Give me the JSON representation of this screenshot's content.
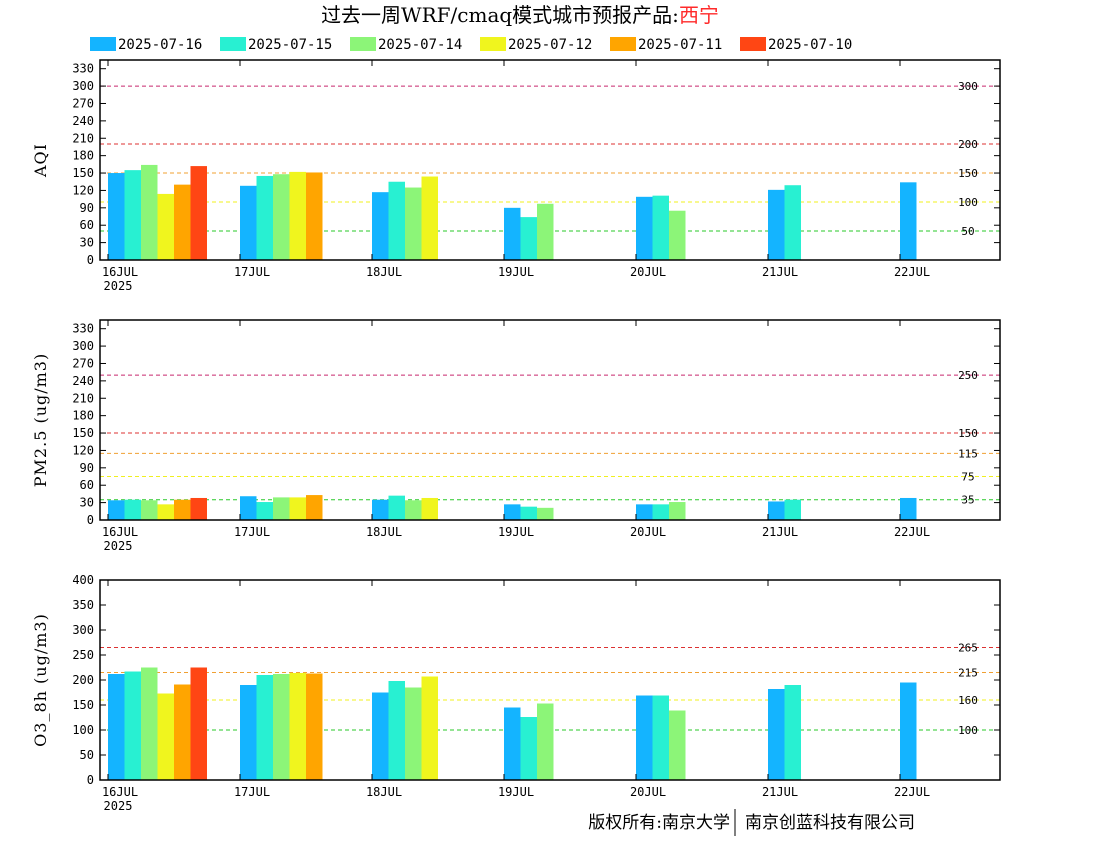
{
  "header": {
    "title_prefix": "过去一周WRF/cmaq模式城市预报产品:",
    "city": "西宁"
  },
  "footer": {
    "copyright_left": "版权所有:南京大学",
    "copyright_right": "南京创蓝科技有限公司"
  },
  "colors": {
    "2025-07-16": "#14b4ff",
    "2025-07-15": "#28f0d2",
    "2025-07-14": "#8cf578",
    "2025-07-12": "#f0f51e",
    "2025-07-11": "#ffa500",
    "2025-07-10": "#ff4614"
  },
  "chart_data": [
    {
      "type": "bar",
      "ylabel": "AQI",
      "categories": [
        "16JUL",
        "17JUL",
        "18JUL",
        "19JUL",
        "20JUL",
        "21JUL",
        "22JUL"
      ],
      "year_label": "2025",
      "ylim": [
        0,
        345
      ],
      "yticks": [
        0,
        30,
        60,
        90,
        120,
        150,
        180,
        210,
        240,
        270,
        300,
        330
      ],
      "thresholds": [
        {
          "value": 300,
          "label": "300",
          "color": "#c8286e"
        },
        {
          "value": 200,
          "label": "200",
          "color": "#dc3232"
        },
        {
          "value": 150,
          "label": "150",
          "color": "#f0a032"
        },
        {
          "value": 100,
          "label": "100",
          "color": "#f0f01e"
        },
        {
          "value": 50,
          "label": "50",
          "color": "#28c828"
        }
      ],
      "series": [
        {
          "name": "2025-07-16",
          "values": [
            150,
            128,
            117,
            90,
            109,
            121,
            134
          ]
        },
        {
          "name": "2025-07-15",
          "values": [
            155,
            145,
            135,
            74,
            111,
            129,
            null
          ]
        },
        {
          "name": "2025-07-14",
          "values": [
            164,
            148,
            125,
            97,
            85,
            null,
            null
          ]
        },
        {
          "name": "2025-07-12",
          "values": [
            114,
            152,
            144,
            null,
            null,
            null,
            null
          ]
        },
        {
          "name": "2025-07-11",
          "values": [
            130,
            151,
            null,
            null,
            null,
            null,
            null
          ]
        },
        {
          "name": "2025-07-10",
          "values": [
            162,
            null,
            null,
            null,
            null,
            null,
            null
          ]
        }
      ]
    },
    {
      "type": "bar",
      "ylabel": "PM2.5 (ug/m3)",
      "categories": [
        "16JUL",
        "17JUL",
        "18JUL",
        "19JUL",
        "20JUL",
        "21JUL",
        "22JUL"
      ],
      "year_label": "2025",
      "ylim": [
        0,
        345
      ],
      "yticks": [
        0,
        30,
        60,
        90,
        120,
        150,
        180,
        210,
        240,
        270,
        300,
        330
      ],
      "thresholds": [
        {
          "value": 250,
          "label": "250",
          "color": "#c8286e"
        },
        {
          "value": 150,
          "label": "150",
          "color": "#dc3232"
        },
        {
          "value": 115,
          "label": "115",
          "color": "#f0a032"
        },
        {
          "value": 75,
          "label": "75",
          "color": "#f0f01e"
        },
        {
          "value": 35,
          "label": "35",
          "color": "#28c828"
        }
      ],
      "series": [
        {
          "name": "2025-07-16",
          "values": [
            34,
            41,
            35,
            27,
            27,
            32,
            38
          ]
        },
        {
          "name": "2025-07-15",
          "values": [
            35,
            31,
            42,
            23,
            27,
            35,
            null
          ]
        },
        {
          "name": "2025-07-14",
          "values": [
            34,
            39,
            34,
            21,
            31,
            null,
            null
          ]
        },
        {
          "name": "2025-07-12",
          "values": [
            27,
            39,
            38,
            null,
            null,
            null,
            null
          ]
        },
        {
          "name": "2025-07-11",
          "values": [
            35,
            43,
            null,
            null,
            null,
            null,
            null
          ]
        },
        {
          "name": "2025-07-10",
          "values": [
            38,
            null,
            null,
            null,
            null,
            null,
            null
          ]
        }
      ]
    },
    {
      "type": "bar",
      "ylabel": "O3_8h (ug/m3)",
      "categories": [
        "16JUL",
        "17JUL",
        "18JUL",
        "19JUL",
        "20JUL",
        "21JUL",
        "22JUL"
      ],
      "year_label": "2025",
      "ylim": [
        0,
        400
      ],
      "yticks": [
        0,
        50,
        100,
        150,
        200,
        250,
        300,
        350,
        400
      ],
      "thresholds": [
        {
          "value": 265,
          "label": "265",
          "color": "#dc3232"
        },
        {
          "value": 215,
          "label": "215",
          "color": "#f0a032"
        },
        {
          "value": 160,
          "label": "160",
          "color": "#f0f01e"
        },
        {
          "value": 100,
          "label": "100",
          "color": "#28c828"
        }
      ],
      "series": [
        {
          "name": "2025-07-16",
          "values": [
            212,
            190,
            175,
            145,
            169,
            182,
            195
          ]
        },
        {
          "name": "2025-07-15",
          "values": [
            217,
            210,
            198,
            126,
            169,
            190,
            null
          ]
        },
        {
          "name": "2025-07-14",
          "values": [
            225,
            212,
            185,
            153,
            139,
            null,
            null
          ]
        },
        {
          "name": "2025-07-12",
          "values": [
            173,
            214,
            207,
            null,
            null,
            null,
            null
          ]
        },
        {
          "name": "2025-07-11",
          "values": [
            191,
            213,
            null,
            null,
            null,
            null,
            null
          ]
        },
        {
          "name": "2025-07-10",
          "values": [
            225,
            null,
            null,
            null,
            null,
            null,
            null
          ]
        }
      ]
    }
  ]
}
